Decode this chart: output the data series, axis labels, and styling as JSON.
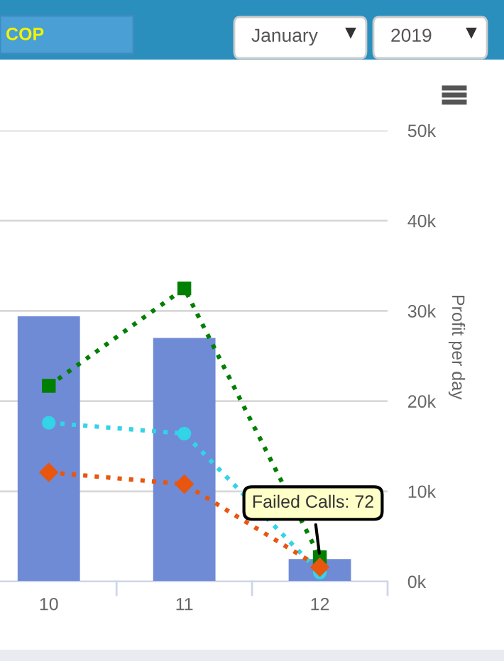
{
  "chart_data": {
    "type": "bar",
    "categories": [
      "10",
      "11",
      "12"
    ],
    "ylabel": "Profit per day",
    "ylim": [
      0,
      50000
    ],
    "yticks": [
      {
        "value": 0,
        "label": "0k"
      },
      {
        "value": 10000,
        "label": "10k"
      },
      {
        "value": 20000,
        "label": "20k"
      },
      {
        "value": 30000,
        "label": "30k"
      },
      {
        "value": 40000,
        "label": "40k"
      },
      {
        "value": 50000,
        "label": "50k"
      }
    ],
    "grid": "y",
    "legend": false,
    "line_style": "dotted",
    "series": [
      {
        "color": "#6f8bd6",
        "values": [
          29400,
          27000,
          2500
        ]
      },
      {
        "type": "line",
        "color": "#008000",
        "marker": "square",
        "values": [
          21700,
          32500,
          2700
        ]
      },
      {
        "type": "line",
        "color": "#33d3e8",
        "marker": "circle",
        "values": [
          17600,
          16400,
          1000
        ]
      },
      {
        "type": "line",
        "color": "#e8560f",
        "marker": "diamond",
        "values": [
          12100,
          10800,
          1600
        ]
      }
    ],
    "annotations": [
      "COP",
      "January",
      "2019",
      {
        "text": "Failed Calls: 72",
        "x": "12",
        "y": 2700
      }
    ]
  }
}
